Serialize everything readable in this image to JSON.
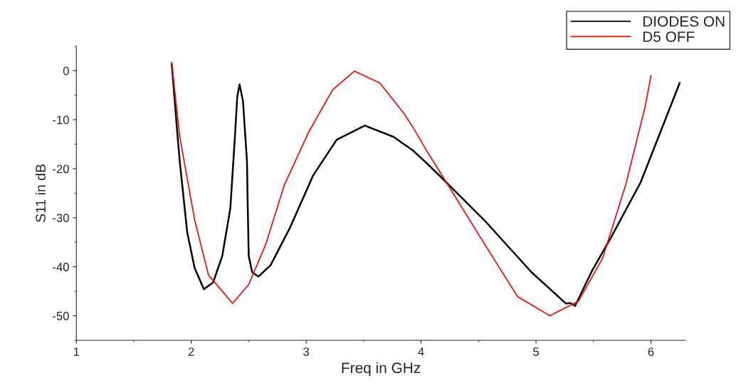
{
  "chart_data": {
    "type": "line",
    "xlabel": "Freq in GHz",
    "ylabel": "S11 in dB",
    "xlim": [
      1,
      6.3
    ],
    "xticks": [
      1,
      2,
      3,
      4,
      5,
      6
    ],
    "ylim": [
      -55,
      5
    ],
    "yticks": [
      -50,
      -40,
      -30,
      -20,
      -10,
      0
    ],
    "legend": "top right",
    "grid": false,
    "marker": "none",
    "line_style": "solid",
    "series": [
      {
        "name": "DIODES ON",
        "color": "#000000",
        "x": [
          1.83,
          1.885,
          1.9,
          1.965,
          2.03,
          2.11,
          2.19,
          2.27,
          2.34,
          2.38,
          2.4,
          2.42,
          2.45,
          2.485,
          2.49,
          2.5,
          2.53,
          2.585,
          2.69,
          2.86,
          3.06,
          3.265,
          3.51,
          3.76,
          3.93,
          4.05,
          4.22,
          4.55,
          4.96,
          5.26,
          5.3,
          5.34,
          5.49,
          5.66,
          5.91,
          6.17,
          6.25
        ],
        "values": [
          1.4,
          -14.5,
          -18.5,
          -33,
          -40.3,
          -44.6,
          -43.2,
          -37.8,
          -28.1,
          -13.5,
          -5.4,
          -2.8,
          -6.2,
          -18.5,
          -25.7,
          -37.8,
          -41.1,
          -42.0,
          -39.7,
          -32,
          -21.4,
          -14.1,
          -11.2,
          -13.5,
          -16.3,
          -18.9,
          -22.8,
          -30.5,
          -41.1,
          -47.5,
          -47.4,
          -48.0,
          -40.7,
          -33.7,
          -22.8,
          -7.3,
          -2.5
        ]
      },
      {
        "name": "D5 OFF",
        "color": "#ff0000",
        "x": [
          1.83,
          1.9,
          2.03,
          2.15,
          2.36,
          2.5,
          2.65,
          2.81,
          3.02,
          3.23,
          3.42,
          3.64,
          3.85,
          3.93,
          4.05,
          4.22,
          4.55,
          4.84,
          5.12,
          5.37,
          5.58,
          5.78,
          5.95,
          6.0
        ],
        "values": [
          1.7,
          -13.5,
          -30.5,
          -41.7,
          -47.5,
          -43.6,
          -35.3,
          -23.3,
          -12.6,
          -3.9,
          -0.1,
          -2.5,
          -8.7,
          -11.6,
          -16.4,
          -22.8,
          -35.3,
          -46.1,
          -50.0,
          -47.0,
          -38.2,
          -23.3,
          -7.3,
          -1.0
        ]
      }
    ]
  }
}
